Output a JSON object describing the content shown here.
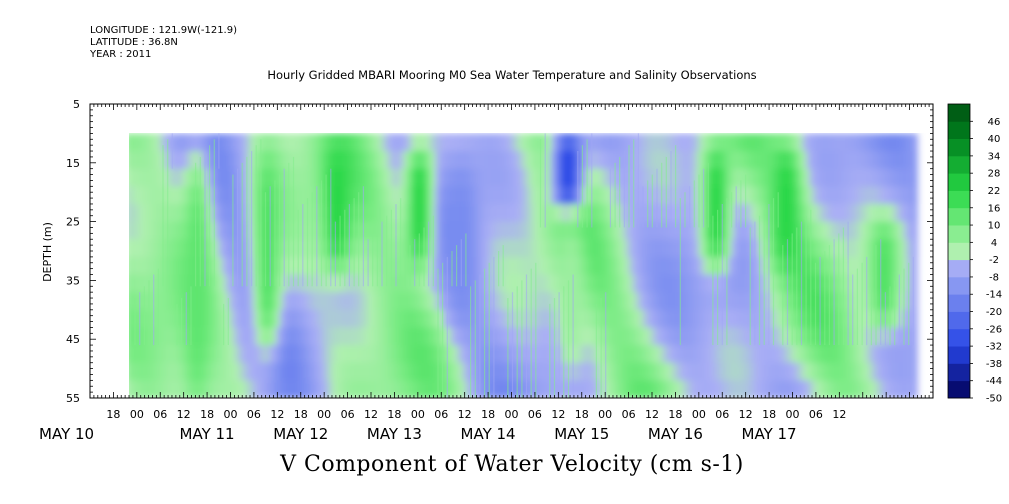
{
  "header": {
    "longitude": "LONGITUDE : 121.9W(-121.9)",
    "latitude": "LATITUDE : 36.8N",
    "year": "YEAR : 2011"
  },
  "chart_data": {
    "type": "heatmap",
    "title": "Hourly Gridded MBARI Mooring M0 Sea Water Temperature and Salinity Observations",
    "xlabel": "V Component of Water Velocity (cm s-1)",
    "ylabel": "DEPTH (m)",
    "x_unit": "hours since 2011-05-10 00:00",
    "xlim": [
      12,
      228
    ],
    "ylim": [
      55,
      5
    ],
    "y_ticks": [
      5,
      15,
      25,
      35,
      45,
      55
    ],
    "x_hour_ticks": [
      "18",
      "00",
      "06",
      "12",
      "18",
      "00",
      "06",
      "12",
      "18",
      "00",
      "06",
      "12",
      "18",
      "00",
      "06",
      "12",
      "18",
      "00",
      "06",
      "12",
      "18",
      "00",
      "06",
      "12",
      "18",
      "00",
      "06",
      "12",
      "18",
      "00",
      "06",
      "12"
    ],
    "x_day_labels": [
      "MAY 10",
      "MAY 11",
      "MAY 12",
      "MAY 13",
      "MAY 14",
      "MAY 15",
      "MAY 16",
      "MAY 17"
    ],
    "data_extent": {
      "x": [
        21,
        224
      ],
      "y": [
        10,
        55
      ]
    },
    "colorbar": {
      "levels": [
        -50,
        -44,
        -38,
        -32,
        -26,
        -20,
        -14,
        -8,
        -2,
        4,
        10,
        16,
        22,
        28,
        34,
        40,
        46
      ],
      "labels": [
        "46",
        "40",
        "34",
        "28",
        "22",
        "16",
        "10",
        "4",
        "-2",
        "-8",
        "-14",
        "-20",
        "-26",
        "-32",
        "-38",
        "-44",
        "-50"
      ]
    },
    "features": [
      {
        "x": 39,
        "depth": [
          12,
          55
        ],
        "v": 14
      },
      {
        "x": 57,
        "depth": [
          12,
          45
        ],
        "v": 16
      },
      {
        "x": 75,
        "depth": [
          12,
          30
        ],
        "v": 22
      },
      {
        "x": 96,
        "depth": [
          12,
          30
        ],
        "v": 22
      },
      {
        "x": 107,
        "depth": [
          15,
          40
        ],
        "v": -14
      },
      {
        "x": 134,
        "depth": [
          10,
          20
        ],
        "v": -32
      },
      {
        "x": 135,
        "depth": [
          25,
          48
        ],
        "v": 4
      },
      {
        "x": 172,
        "depth": [
          12,
          30
        ],
        "v": 22
      },
      {
        "x": 190,
        "depth": [
          12,
          30
        ],
        "v": 22
      },
      {
        "x": 215,
        "depth": [
          25,
          40
        ],
        "v": 16
      }
    ]
  }
}
